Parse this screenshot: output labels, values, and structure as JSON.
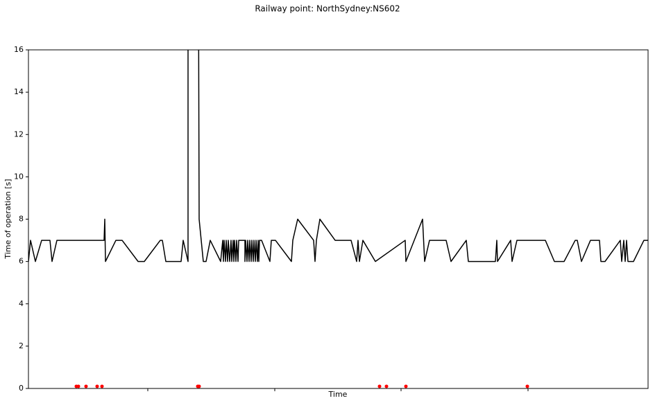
{
  "chart_data": {
    "type": "line",
    "title": "Railway point: NorthSydney:NS602",
    "xlabel": "Time",
    "ylabel": "Time of operation [s]",
    "xlim": [
      0,
      893
    ],
    "xticks": [
      172,
      355,
      537,
      720
    ],
    "ylim": [
      0,
      16
    ],
    "yticks": [
      0,
      2,
      4,
      6,
      8,
      10,
      12,
      14,
      16
    ],
    "series": [
      {
        "type": "line",
        "color": "#000000",
        "x": [
          0,
          3,
          10,
          19,
          31,
          34,
          41,
          109,
          110,
          111,
          126,
          135,
          158,
          167,
          190,
          193,
          198,
          220,
          223,
          230,
          230,
          245,
          246,
          252,
          256,
          262,
          277,
          280,
          281,
          282,
          284,
          285,
          287,
          288,
          290,
          292,
          293,
          295,
          296,
          297,
          299,
          300,
          302,
          303,
          304,
          312,
          312,
          313,
          315,
          316,
          318,
          319,
          321,
          322,
          324,
          325,
          327,
          328,
          330,
          331,
          332,
          333,
          336,
          348,
          350,
          356,
          379,
          381,
          388,
          411,
          413,
          415,
          420,
          442,
          465,
          473,
          475,
          477,
          482,
          500,
          543,
          544,
          568,
          571,
          578,
          602,
          609,
          631,
          634,
          673,
          675,
          676,
          695,
          697,
          704,
          745,
          758,
          772,
          788,
          791,
          797,
          810,
          823,
          825,
          831,
          853,
          855,
          858,
          860,
          862,
          864,
          872,
          887,
          893
        ],
        "values": [
          6,
          7,
          6,
          7,
          7,
          6,
          7,
          7,
          8,
          6,
          7,
          7,
          6,
          6,
          7,
          7,
          6,
          6,
          7,
          6,
          20,
          20,
          8,
          6,
          6,
          7,
          6,
          7,
          6,
          7,
          6,
          7,
          6,
          7,
          6,
          7,
          6,
          7,
          6,
          7,
          6,
          7,
          6,
          7,
          7,
          7,
          6,
          7,
          6,
          7,
          6,
          7,
          6,
          7,
          6,
          7,
          6,
          7,
          6,
          7,
          6,
          7,
          7,
          6,
          7,
          7,
          6,
          7,
          8,
          7,
          6,
          7,
          8,
          7,
          7,
          6,
          7,
          6,
          7,
          6,
          7,
          6,
          8,
          6,
          7,
          7,
          6,
          7,
          6,
          6,
          7,
          6,
          7,
          6,
          7,
          7,
          6,
          6,
          7,
          7,
          6,
          7,
          7,
          6,
          6,
          7,
          6,
          7,
          6,
          7,
          6,
          6,
          7,
          7
        ]
      },
      {
        "type": "scatter",
        "color": "#ff0000",
        "x": [
          69,
          72,
          83,
          99,
          106,
          244,
          246,
          506,
          516,
          544,
          719
        ],
        "values": [
          0.1,
          0.1,
          0.1,
          0.1,
          0.1,
          0.1,
          0.1,
          0.1,
          0.1,
          0.1,
          0.1
        ]
      }
    ]
  }
}
